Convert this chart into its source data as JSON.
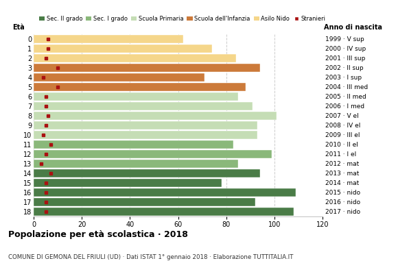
{
  "ages": [
    18,
    17,
    16,
    15,
    14,
    13,
    12,
    11,
    10,
    9,
    8,
    7,
    6,
    5,
    4,
    3,
    2,
    1,
    0
  ],
  "bar_values": [
    108,
    92,
    109,
    78,
    94,
    85,
    99,
    83,
    93,
    93,
    101,
    91,
    85,
    88,
    71,
    94,
    84,
    74,
    62
  ],
  "stranieri": [
    5,
    5,
    5,
    5,
    7,
    3,
    5,
    7,
    4,
    5,
    6,
    5,
    5,
    10,
    4,
    10,
    5,
    6,
    6
  ],
  "bar_colors": [
    "#4a7c47",
    "#4a7c47",
    "#4a7c47",
    "#4a7c47",
    "#4a7c47",
    "#8ab87a",
    "#8ab87a",
    "#8ab87a",
    "#c5ddb5",
    "#c5ddb5",
    "#c5ddb5",
    "#c5ddb5",
    "#c5ddb5",
    "#cc7a3a",
    "#cc7a3a",
    "#cc7a3a",
    "#f5d68a",
    "#f5d68a",
    "#f5d68a"
  ],
  "right_labels": [
    "1999 · V sup",
    "2000 · IV sup",
    "2001 · III sup",
    "2002 · II sup",
    "2003 · I sup",
    "2004 · III med",
    "2005 · II med",
    "2006 · I med",
    "2007 · V el",
    "2008 · IV el",
    "2009 · III el",
    "2010 · II el",
    "2011 · I el",
    "2012 · mat",
    "2013 · mat",
    "2014 · mat",
    "2015 · nido",
    "2016 · nido",
    "2017 · nido"
  ],
  "legend_labels": [
    "Sec. II grado",
    "Sec. I grado",
    "Scuola Primaria",
    "Scuola dell'Infanzia",
    "Asilo Nido",
    "Stranieri"
  ],
  "legend_colors": [
    "#4a7c47",
    "#8ab87a",
    "#c5ddb5",
    "#cc7a3a",
    "#f5d68a",
    "#aa1111"
  ],
  "stranieri_color": "#aa1111",
  "title": "Popolazione per età scolastica · 2018",
  "subtitle": "COMUNE DI GEMONA DEL FRIULI (UD) · Dati ISTAT 1° gennaio 2018 · Elaborazione TUTTITALIA.IT",
  "xlabel_eta": "Età",
  "xlabel_anno": "Anno di nascita",
  "xlim": [
    0,
    120
  ],
  "xticks": [
    0,
    20,
    40,
    60,
    80,
    100,
    120
  ],
  "grid_color": "#cccccc",
  "bg_color": "#ffffff"
}
